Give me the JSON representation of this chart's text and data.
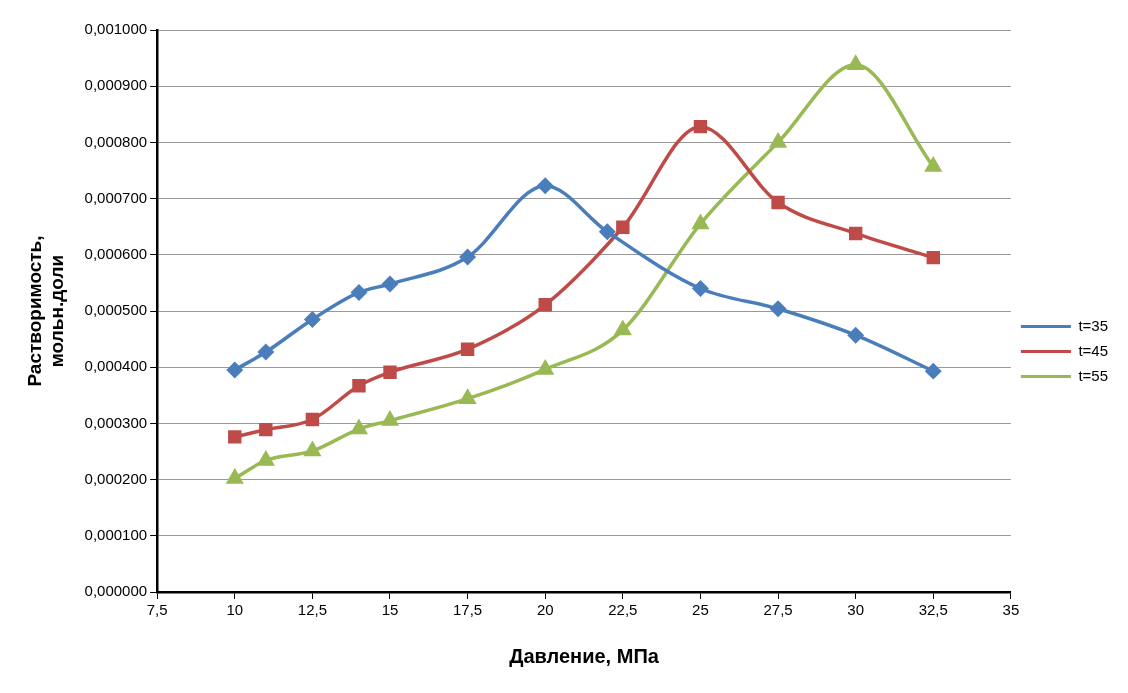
{
  "chart_data": {
    "type": "line",
    "xlabel": "Давление, МПа",
    "ylabel": "Растворимость,\nмольн.доли",
    "xlim": [
      7.5,
      35
    ],
    "xticks": [
      {
        "value": 7.5,
        "label": "7,5"
      },
      10,
      {
        "value": 12.5,
        "label": "12,5"
      },
      15,
      {
        "value": 17.5,
        "label": "17,5"
      },
      20,
      {
        "value": 22.5,
        "label": "22,5"
      },
      25,
      {
        "value": 27.5,
        "label": "27,5"
      },
      30,
      {
        "value": 32.5,
        "label": "32,5"
      },
      35
    ],
    "ylim": [
      0,
      0.001
    ],
    "yticks": [
      {
        "value": 0,
        "label": "0,000000"
      },
      {
        "value": 0.0001,
        "label": "0,000100"
      },
      {
        "value": 0.0002,
        "label": "0,000200"
      },
      {
        "value": 0.0003,
        "label": "0,000300"
      },
      {
        "value": 0.0004,
        "label": "0,000400"
      },
      {
        "value": 0.0005,
        "label": "0,000500"
      },
      {
        "value": 0.0006,
        "label": "0,000600"
      },
      {
        "value": 0.0007,
        "label": "0,000700"
      },
      {
        "value": 0.0008,
        "label": "0,000800"
      },
      {
        "value": 0.0009,
        "label": "0,000900"
      },
      {
        "value": 0.001,
        "label": "0,001000"
      }
    ],
    "grid": "y",
    "legend": "right",
    "line_style": "solid",
    "series": [
      {
        "name": "t=35",
        "color": "#4a7ebb",
        "marker": "diamond",
        "x": [
          10,
          11,
          12.5,
          14,
          15,
          17.5,
          20,
          22,
          25,
          27.5,
          30,
          32.5
        ],
        "values": [
          0.000395,
          0.000427,
          0.000485,
          0.000533,
          0.000548,
          0.000596,
          0.000723,
          0.000641,
          0.00054,
          0.000504,
          0.000457,
          0.000393
        ]
      },
      {
        "name": "t=45",
        "color": "#be4b48",
        "marker": "square",
        "x": [
          10,
          11,
          12.5,
          14,
          15,
          17.5,
          20,
          22.5,
          25,
          27.5,
          30,
          32.5
        ],
        "values": [
          0.000276,
          0.000289,
          0.000307,
          0.000367,
          0.000391,
          0.000432,
          0.000511,
          0.000649,
          0.000828,
          0.000693,
          0.000638,
          0.000595
        ]
      },
      {
        "name": "t=55",
        "color": "#98b954",
        "marker": "triangle",
        "x": [
          10,
          11,
          12.5,
          14,
          15,
          17.5,
          20,
          22.5,
          25,
          27.5,
          30,
          32.5
        ],
        "values": [
          0.000202,
          0.000234,
          0.000251,
          0.00029,
          0.000305,
          0.000344,
          0.000396,
          0.000466,
          0.000655,
          0.0008,
          0.000938,
          0.000757
        ]
      }
    ]
  }
}
